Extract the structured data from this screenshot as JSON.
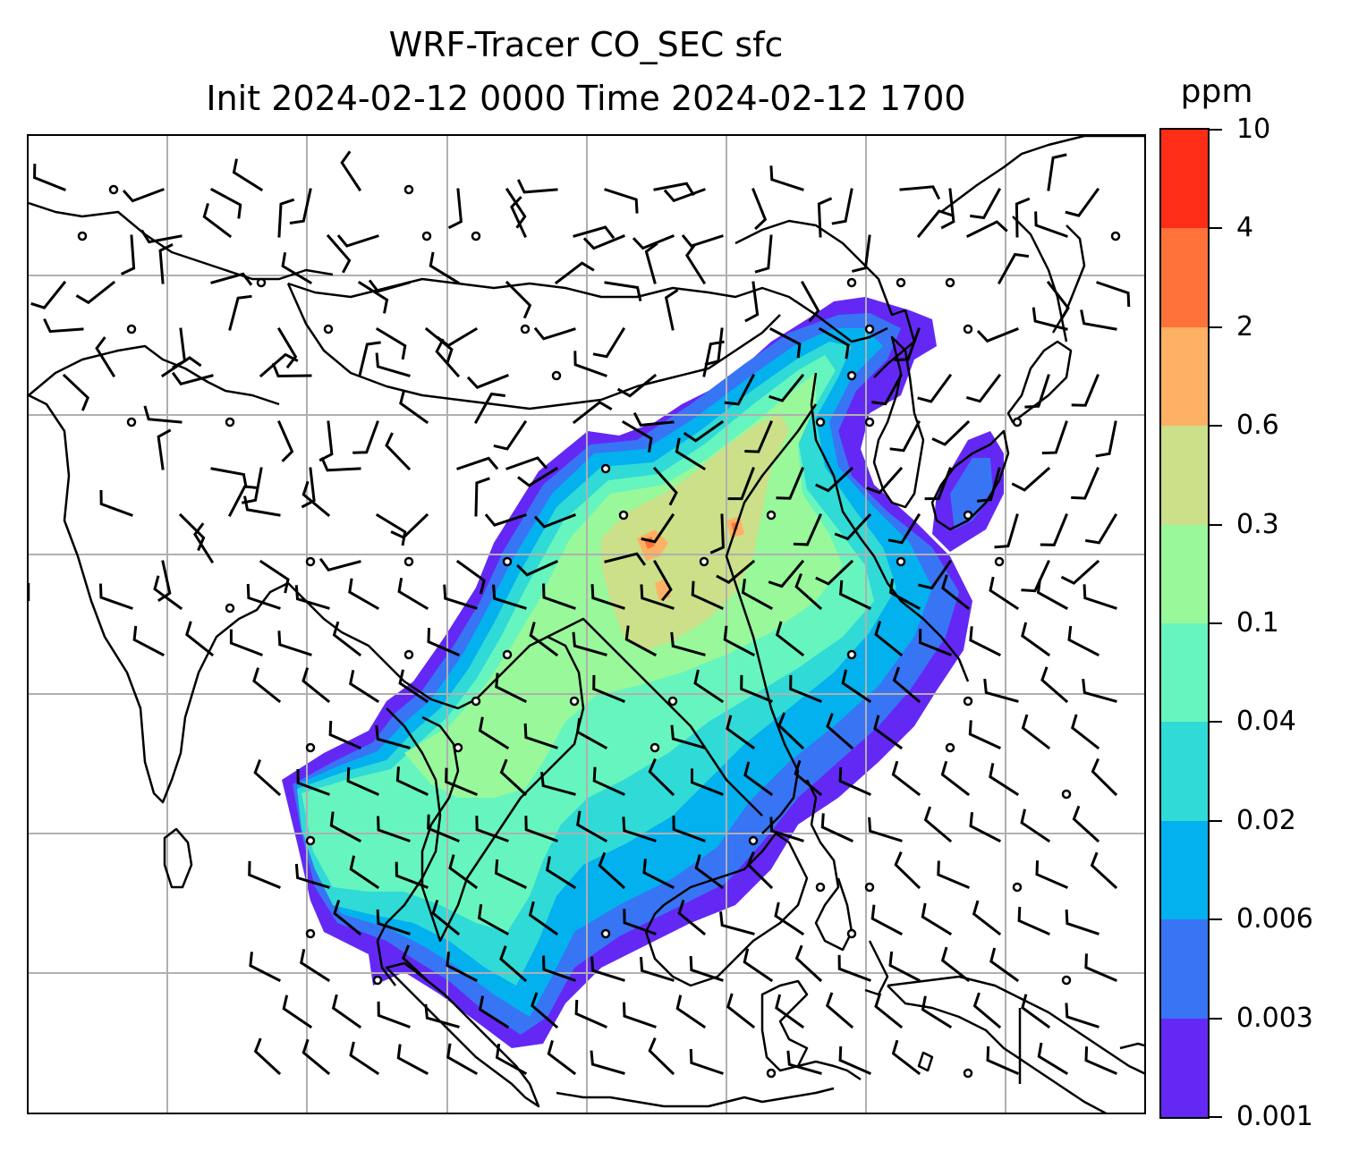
{
  "title": {
    "line1": "WRF-Tracer CO_SEC sfc",
    "line2": "Init 2024-02-12 0000 Time 2024-02-12 1700"
  },
  "colorbar": {
    "unit": "ppm",
    "levels": [
      "0.001",
      "0.003",
      "0.006",
      "0.02",
      "0.04",
      "0.1",
      "0.3",
      "0.6",
      "2",
      "4",
      "10"
    ],
    "colors": [
      "#6428f5",
      "#3775f5",
      "#03b1ee",
      "#30dad6",
      "#66f5be",
      "#98f89a",
      "#cbe089",
      "#feb064",
      "#ff7239",
      "#fd2d18"
    ]
  },
  "map": {
    "gridlines": true,
    "coastline_color": "#000000",
    "gridline_color": "#b0b0b0",
    "wind_barbs": "black",
    "calm_markers": "open-circles"
  }
}
